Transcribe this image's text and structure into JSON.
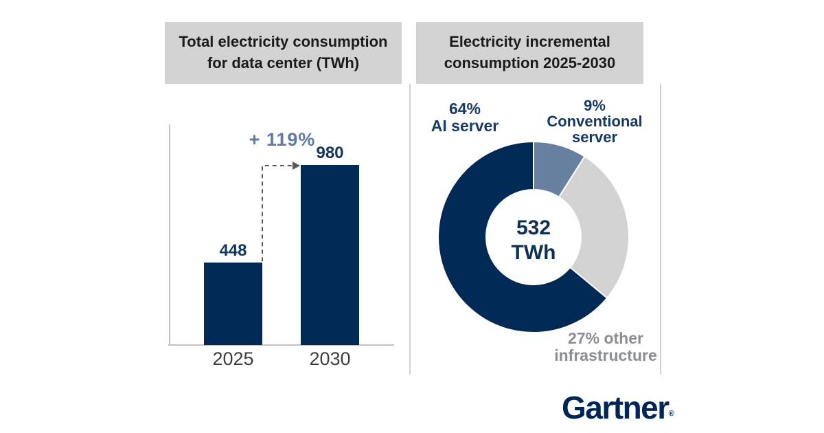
{
  "page": {
    "background": "#ffffff",
    "accent_navy": "#002a55",
    "accent_bluegray": "#68809f",
    "accent_lightgray": "#d2d2d2",
    "title_bg": "#d3d3d3"
  },
  "left_panel": {
    "title": "Total electricity consumption\nfor data center (TWh)"
  },
  "right_panel": {
    "title": "Electricity incremental\nconsumption 2025-2030"
  },
  "chart_data": [
    {
      "type": "bar",
      "title": "Total electricity consumption for data center (TWh)",
      "categories": [
        "2025",
        "2030"
      ],
      "values": [
        448,
        980
      ],
      "value_labels": [
        "448",
        "980"
      ],
      "growth_annotation": "+ 119%",
      "bar_color": "#002a55",
      "ylim": [
        0,
        980
      ],
      "grid": false,
      "xlabel": "",
      "ylabel": ""
    },
    {
      "type": "pie",
      "title": "Electricity incremental consumption 2025-2030",
      "donut": true,
      "start": "top",
      "direction": "clockwise",
      "center_label": "532\nTWh",
      "slices": [
        {
          "label": "9% Conventional server",
          "value": 9,
          "color": "#68809f"
        },
        {
          "label": "27% other infrastructure",
          "value": 27,
          "color": "#d2d2d2"
        },
        {
          "label": "64% AI server",
          "value": 64,
          "color": "#002a55"
        }
      ]
    }
  ],
  "donut_labels": {
    "ai": "64%\nAI server",
    "conventional": "9%\nConventional\nserver",
    "other": "27% other\ninfrastructure"
  },
  "logo": {
    "text": "Gartner",
    "registered": "®"
  }
}
